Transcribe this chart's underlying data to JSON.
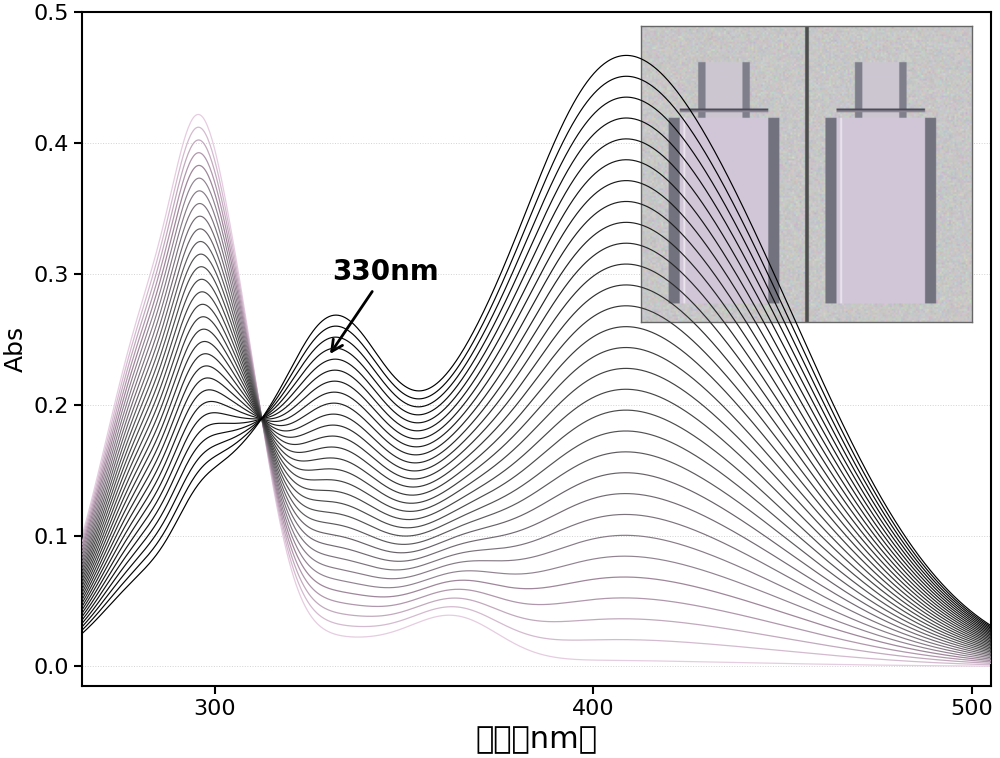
{
  "xlabel": "波长（nm）",
  "ylabel": "Abs",
  "xlim": [
    265,
    505
  ],
  "ylim": [
    -0.015,
    0.5
  ],
  "yticks": [
    0.0,
    0.1,
    0.2,
    0.3,
    0.4,
    0.5
  ],
  "xticks": [
    300,
    400,
    500
  ],
  "n_curves": 30,
  "background_color": "#ffffff",
  "grid_color": "#c8c8c8",
  "xlabel_fontsize": 22,
  "ylabel_fontsize": 18,
  "tick_fontsize": 16,
  "annotation_fontsize": 20
}
